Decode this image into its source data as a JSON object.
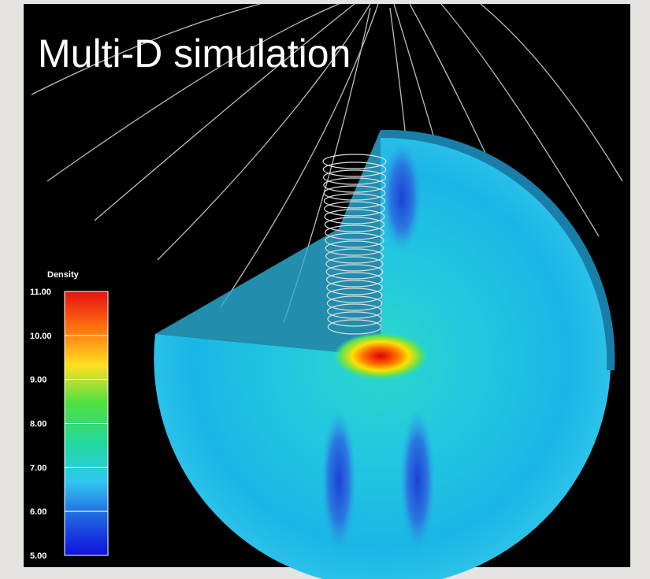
{
  "title": "Multi-D simulation",
  "colorbar": {
    "label": "Density",
    "ticks": [
      "11.00",
      "10.00",
      "9.00",
      "8.00",
      "7.00",
      "6.00",
      "5.00"
    ]
  }
}
